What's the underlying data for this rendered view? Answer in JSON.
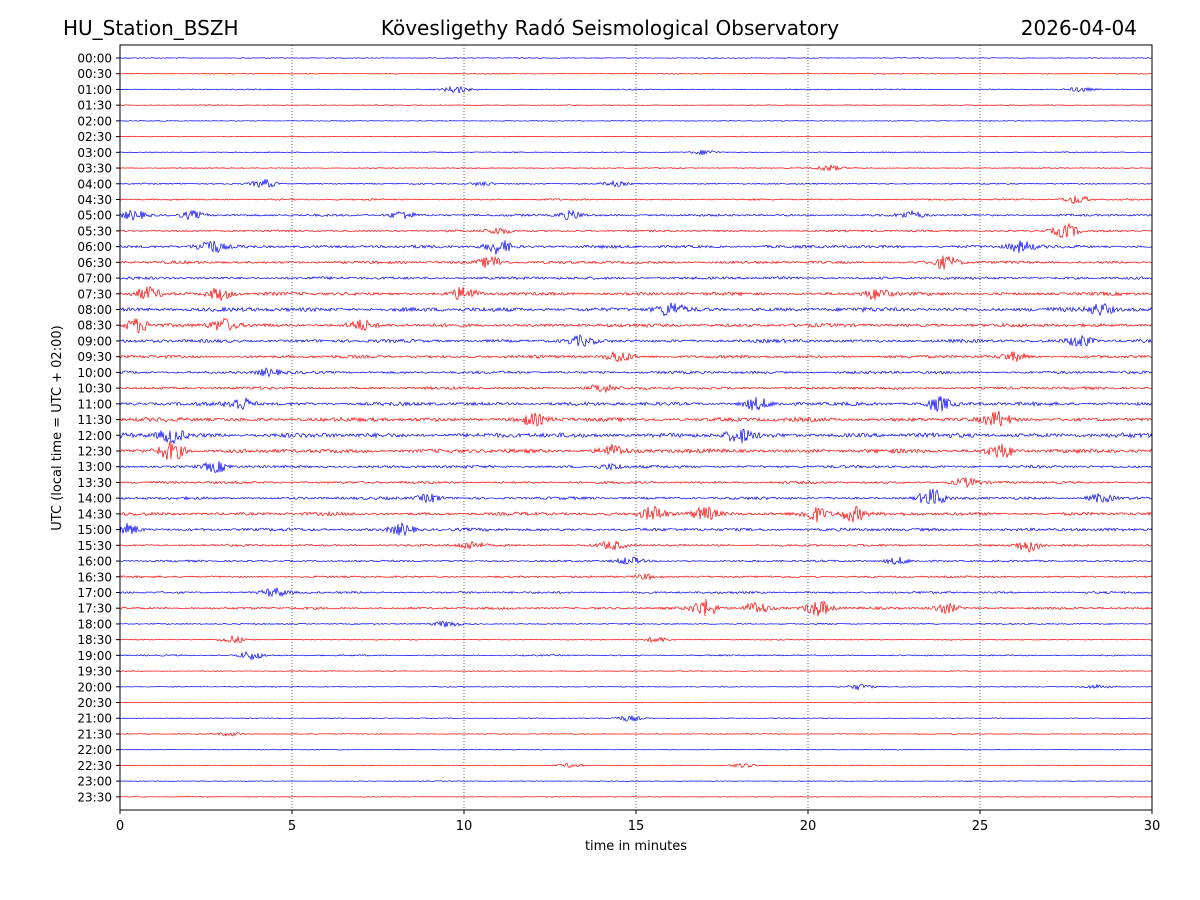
{
  "header": {
    "station": "HU_Station_BSZH",
    "observatory": "Kövesligethy Radó Seismological Observatory",
    "date": "2026-04-04"
  },
  "chart_data": {
    "type": "line",
    "title": "Kövesligethy Radó Seismological Observatory",
    "xlabel": "time in minutes",
    "ylabel": "UTC (local time = UTC + 02:00)",
    "xlim": [
      0,
      30
    ],
    "x_ticks": [
      0,
      5,
      10,
      15,
      20,
      25,
      30
    ],
    "grid": "vertical dotted at x ticks",
    "trace_colors": [
      "#0000ff",
      "#ff0000"
    ],
    "rows": [
      {
        "label": "00:00",
        "color": "#0000ff",
        "level": 0.15,
        "events": []
      },
      {
        "label": "00:30",
        "color": "#ff0000",
        "level": 0.15,
        "events": []
      },
      {
        "label": "01:00",
        "color": "#0000ff",
        "level": 0.2,
        "events": [
          {
            "t": 9.8,
            "amp": 0.5
          },
          {
            "t": 27.9,
            "amp": 0.3
          }
        ]
      },
      {
        "label": "01:30",
        "color": "#ff0000",
        "level": 0.15,
        "events": []
      },
      {
        "label": "02:00",
        "color": "#0000ff",
        "level": 0.15,
        "events": []
      },
      {
        "label": "02:30",
        "color": "#ff0000",
        "level": 0.15,
        "events": []
      },
      {
        "label": "03:00",
        "color": "#0000ff",
        "level": 0.2,
        "events": [
          {
            "t": 17.0,
            "amp": 0.3
          }
        ]
      },
      {
        "label": "03:30",
        "color": "#ff0000",
        "level": 0.2,
        "events": [
          {
            "t": 20.6,
            "amp": 0.4
          }
        ]
      },
      {
        "label": "04:00",
        "color": "#0000ff",
        "level": 0.25,
        "events": [
          {
            "t": 4.2,
            "amp": 0.6
          },
          {
            "t": 10.5,
            "amp": 0.3
          },
          {
            "t": 14.4,
            "amp": 0.3
          }
        ]
      },
      {
        "label": "04:30",
        "color": "#ff0000",
        "level": 0.3,
        "events": [
          {
            "t": 27.8,
            "amp": 0.6
          }
        ]
      },
      {
        "label": "05:00",
        "color": "#0000ff",
        "level": 0.4,
        "events": [
          {
            "t": 0.4,
            "amp": 0.6
          },
          {
            "t": 2.1,
            "amp": 0.6
          },
          {
            "t": 8.2,
            "amp": 0.6
          },
          {
            "t": 13.1,
            "amp": 0.6
          },
          {
            "t": 23.0,
            "amp": 0.5
          }
        ]
      },
      {
        "label": "05:30",
        "color": "#ff0000",
        "level": 0.35,
        "events": [
          {
            "t": 11.0,
            "amp": 0.5
          },
          {
            "t": 27.5,
            "amp": 1.0
          }
        ]
      },
      {
        "label": "06:00",
        "color": "#0000ff",
        "level": 0.55,
        "events": [
          {
            "t": 2.6,
            "amp": 1.0
          },
          {
            "t": 11.0,
            "amp": 1.0
          },
          {
            "t": 26.2,
            "amp": 0.8
          }
        ]
      },
      {
        "label": "06:30",
        "color": "#ff0000",
        "level": 0.5,
        "events": [
          {
            "t": 10.8,
            "amp": 0.9
          },
          {
            "t": 24.0,
            "amp": 0.9
          }
        ]
      },
      {
        "label": "07:00",
        "color": "#0000ff",
        "level": 0.5,
        "events": []
      },
      {
        "label": "07:30",
        "color": "#ff0000",
        "level": 0.6,
        "events": [
          {
            "t": 0.8,
            "amp": 0.9
          },
          {
            "t": 2.9,
            "amp": 0.9
          },
          {
            "t": 10.0,
            "amp": 0.9
          },
          {
            "t": 22.0,
            "amp": 0.8
          }
        ]
      },
      {
        "label": "08:00",
        "color": "#0000ff",
        "level": 0.75,
        "events": [
          {
            "t": 16.0,
            "amp": 0.9
          },
          {
            "t": 28.5,
            "amp": 0.8
          }
        ]
      },
      {
        "label": "08:30",
        "color": "#ff0000",
        "level": 0.65,
        "events": [
          {
            "t": 0.5,
            "amp": 1.0
          },
          {
            "t": 3.0,
            "amp": 0.9
          },
          {
            "t": 7.0,
            "amp": 0.7
          }
        ]
      },
      {
        "label": "09:00",
        "color": "#0000ff",
        "level": 0.6,
        "events": [
          {
            "t": 13.4,
            "amp": 0.6
          },
          {
            "t": 27.9,
            "amp": 0.9
          }
        ]
      },
      {
        "label": "09:30",
        "color": "#ff0000",
        "level": 0.55,
        "events": [
          {
            "t": 14.5,
            "amp": 0.8
          },
          {
            "t": 26.0,
            "amp": 0.6
          }
        ]
      },
      {
        "label": "10:00",
        "color": "#0000ff",
        "level": 0.5,
        "events": [
          {
            "t": 4.3,
            "amp": 0.5
          }
        ]
      },
      {
        "label": "10:30",
        "color": "#ff0000",
        "level": 0.5,
        "events": [
          {
            "t": 14.0,
            "amp": 0.6
          }
        ]
      },
      {
        "label": "11:00",
        "color": "#0000ff",
        "level": 0.65,
        "events": [
          {
            "t": 3.5,
            "amp": 0.9
          },
          {
            "t": 18.5,
            "amp": 0.8
          },
          {
            "t": 23.8,
            "amp": 1.0
          }
        ]
      },
      {
        "label": "11:30",
        "color": "#ff0000",
        "level": 0.75,
        "events": [
          {
            "t": 25.5,
            "amp": 1.0
          },
          {
            "t": 12.0,
            "amp": 0.7
          }
        ]
      },
      {
        "label": "12:00",
        "color": "#0000ff",
        "level": 0.85,
        "events": [
          {
            "t": 1.5,
            "amp": 1.0
          },
          {
            "t": 18.0,
            "amp": 0.9
          }
        ]
      },
      {
        "label": "12:30",
        "color": "#ff0000",
        "level": 0.75,
        "events": [
          {
            "t": 1.5,
            "amp": 1.3
          },
          {
            "t": 25.6,
            "amp": 1.0
          },
          {
            "t": 14.3,
            "amp": 0.8
          }
        ]
      },
      {
        "label": "13:00",
        "color": "#0000ff",
        "level": 0.5,
        "events": [
          {
            "t": 2.8,
            "amp": 0.7
          },
          {
            "t": 14.3,
            "amp": 0.4
          }
        ]
      },
      {
        "label": "13:30",
        "color": "#ff0000",
        "level": 0.45,
        "events": [
          {
            "t": 24.6,
            "amp": 0.6
          }
        ]
      },
      {
        "label": "14:00",
        "color": "#0000ff",
        "level": 0.5,
        "events": [
          {
            "t": 9.0,
            "amp": 0.6
          },
          {
            "t": 23.6,
            "amp": 1.2
          },
          {
            "t": 28.5,
            "amp": 0.6
          }
        ]
      },
      {
        "label": "14:30",
        "color": "#ff0000",
        "level": 0.6,
        "events": [
          {
            "t": 15.5,
            "amp": 1.1
          },
          {
            "t": 17.0,
            "amp": 0.9
          },
          {
            "t": 20.2,
            "amp": 1.1
          },
          {
            "t": 21.3,
            "amp": 1.1
          }
        ]
      },
      {
        "label": "15:00",
        "color": "#0000ff",
        "level": 0.55,
        "events": [
          {
            "t": 0.2,
            "amp": 0.8
          },
          {
            "t": 8.2,
            "amp": 0.8
          }
        ]
      },
      {
        "label": "15:30",
        "color": "#ff0000",
        "level": 0.4,
        "events": [
          {
            "t": 10.2,
            "amp": 0.6
          },
          {
            "t": 14.3,
            "amp": 0.6
          },
          {
            "t": 26.4,
            "amp": 0.9
          }
        ]
      },
      {
        "label": "16:00",
        "color": "#0000ff",
        "level": 0.35,
        "events": [
          {
            "t": 14.8,
            "amp": 0.5
          },
          {
            "t": 22.6,
            "amp": 0.5
          }
        ]
      },
      {
        "label": "16:30",
        "color": "#ff0000",
        "level": 0.35,
        "events": [
          {
            "t": 15.3,
            "amp": 0.4
          }
        ]
      },
      {
        "label": "17:00",
        "color": "#0000ff",
        "level": 0.4,
        "events": [
          {
            "t": 4.5,
            "amp": 0.6
          }
        ]
      },
      {
        "label": "17:30",
        "color": "#ff0000",
        "level": 0.45,
        "events": [
          {
            "t": 17.0,
            "amp": 1.2
          },
          {
            "t": 18.5,
            "amp": 0.9
          },
          {
            "t": 20.3,
            "amp": 1.2
          },
          {
            "t": 24.0,
            "amp": 0.7
          }
        ]
      },
      {
        "label": "18:00",
        "color": "#0000ff",
        "level": 0.25,
        "events": [
          {
            "t": 9.5,
            "amp": 0.4
          }
        ]
      },
      {
        "label": "18:30",
        "color": "#ff0000",
        "level": 0.2,
        "events": [
          {
            "t": 3.3,
            "amp": 0.5
          },
          {
            "t": 15.6,
            "amp": 0.4
          }
        ]
      },
      {
        "label": "19:00",
        "color": "#0000ff",
        "level": 0.25,
        "events": [
          {
            "t": 3.8,
            "amp": 0.6
          }
        ]
      },
      {
        "label": "19:30",
        "color": "#ff0000",
        "level": 0.15,
        "events": []
      },
      {
        "label": "20:00",
        "color": "#0000ff",
        "level": 0.15,
        "events": [
          {
            "t": 21.5,
            "amp": 0.4
          },
          {
            "t": 28.4,
            "amp": 0.3
          }
        ]
      },
      {
        "label": "20:30",
        "color": "#ff0000",
        "level": 0.15,
        "events": []
      },
      {
        "label": "21:00",
        "color": "#0000ff",
        "level": 0.15,
        "events": [
          {
            "t": 14.8,
            "amp": 0.4
          }
        ]
      },
      {
        "label": "21:30",
        "color": "#ff0000",
        "level": 0.15,
        "events": [
          {
            "t": 3.2,
            "amp": 0.3
          }
        ]
      },
      {
        "label": "22:00",
        "color": "#0000ff",
        "level": 0.12,
        "events": []
      },
      {
        "label": "22:30",
        "color": "#ff0000",
        "level": 0.12,
        "events": [
          {
            "t": 13.1,
            "amp": 0.3
          },
          {
            "t": 18.1,
            "amp": 0.3
          }
        ]
      },
      {
        "label": "23:00",
        "color": "#0000ff",
        "level": 0.12,
        "events": []
      },
      {
        "label": "23:30",
        "color": "#ff0000",
        "level": 0.12,
        "events": []
      }
    ]
  }
}
